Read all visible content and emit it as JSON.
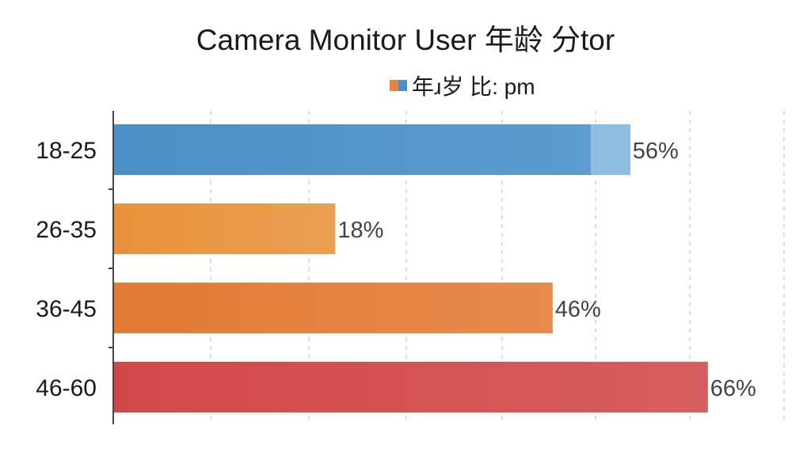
{
  "chart_data": {
    "type": "bar",
    "orientation": "horizontal",
    "title": "Camera Monitor User 年龄 分tor",
    "legend": {
      "label": "年ɹ岁 比: pm",
      "placement": "top-center"
    },
    "categories": [
      "18-25",
      "26-35",
      "36-45",
      "46-60"
    ],
    "values": [
      56,
      18,
      46,
      66
    ],
    "data_labels": [
      "56%",
      "18%",
      "46%",
      "66%"
    ],
    "colors": [
      "#4a8fc8",
      "#e8923a",
      "#e47a35",
      "#d24848"
    ],
    "grid": true,
    "xlabel": "",
    "ylabel": ""
  }
}
